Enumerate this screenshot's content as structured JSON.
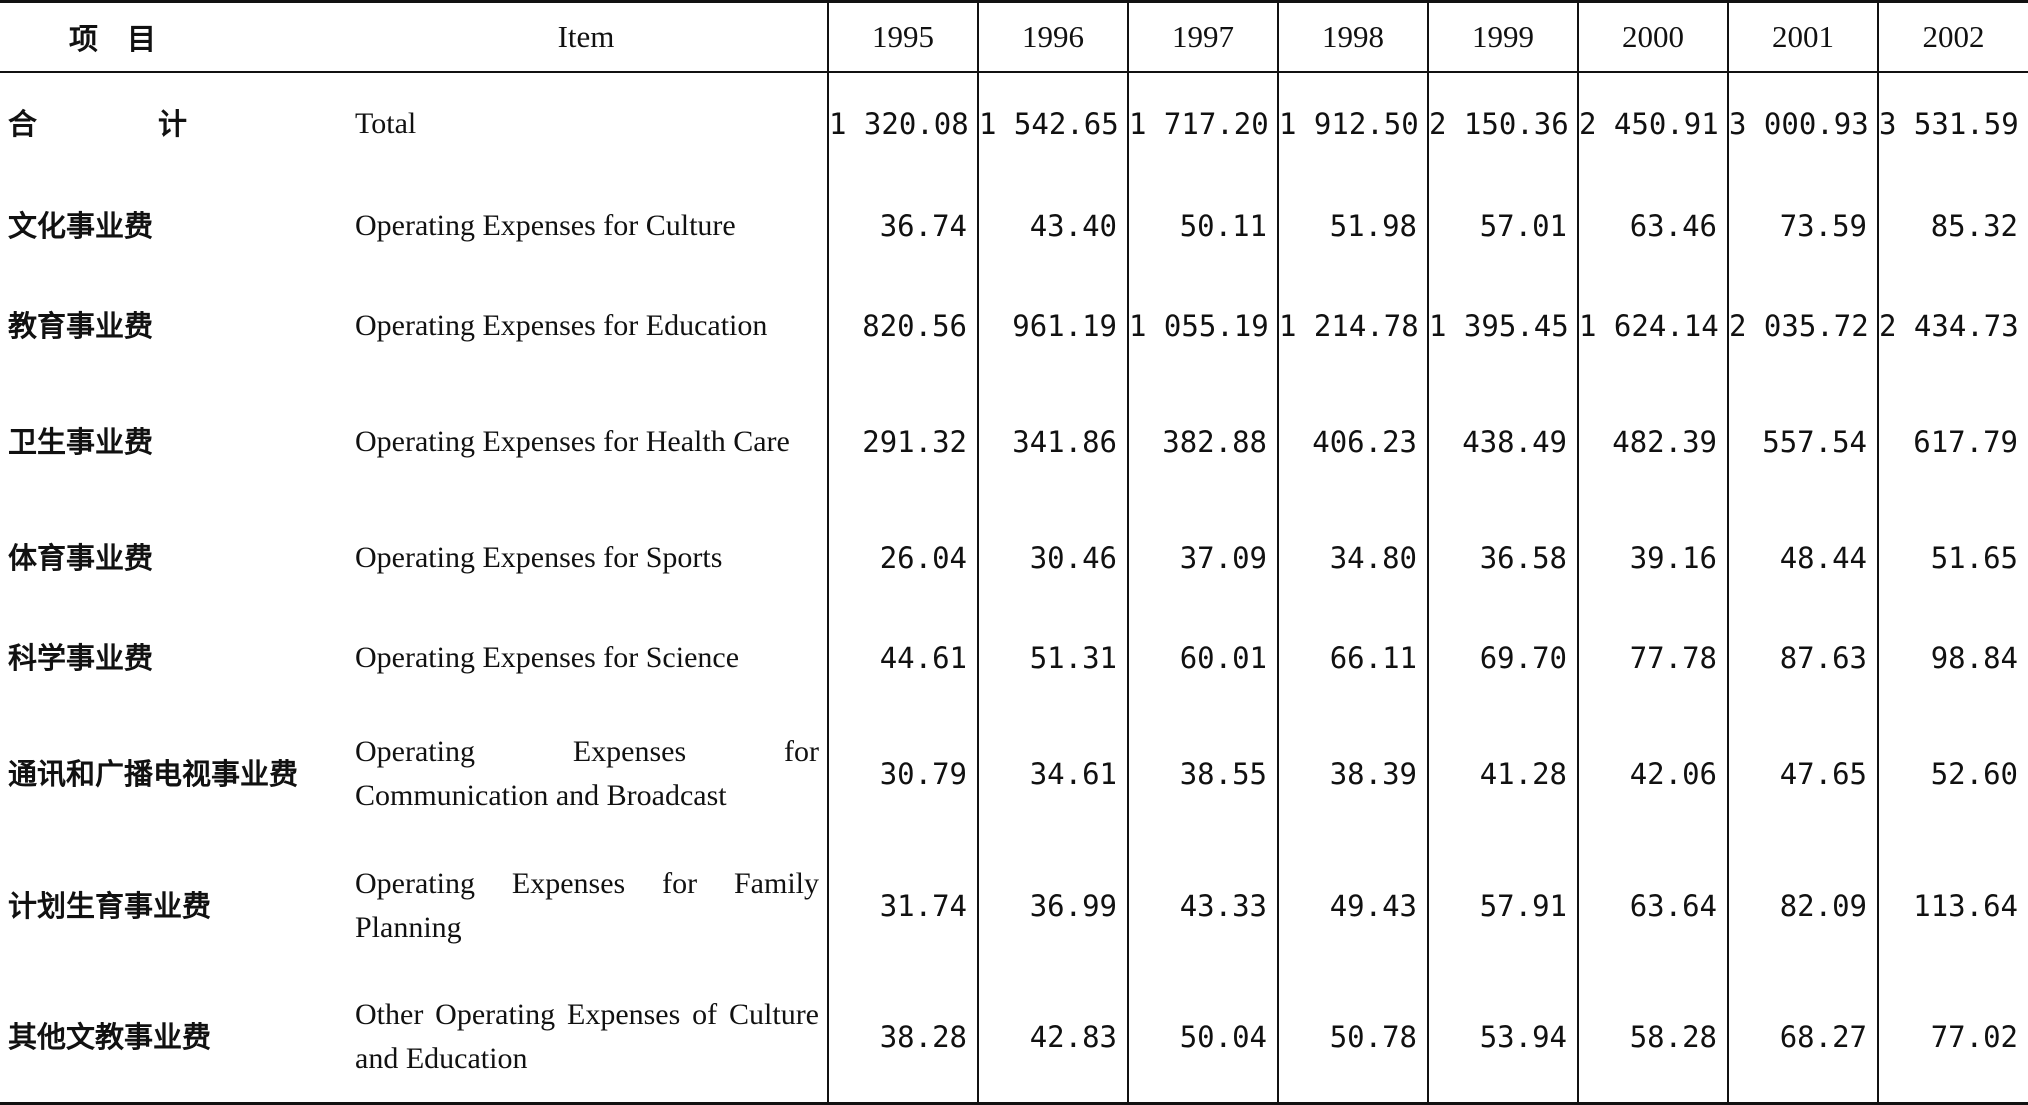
{
  "header": {
    "item_zh": "项　目",
    "item_en": "Item",
    "years": [
      "1995",
      "1996",
      "1997",
      "1998",
      "1999",
      "2000",
      "2001",
      "2002"
    ]
  },
  "rows": [
    {
      "zh": "合　计",
      "en": "Total",
      "values": [
        "1 320.08",
        "1 542.65",
        "1 717.20",
        "1 912.50",
        "2 150.36",
        "2 450.91",
        "3 000.93",
        "3 531.59"
      ]
    },
    {
      "zh": "文化事业费",
      "en": "Operating Expenses for Culture",
      "values": [
        "36.74",
        "43.40",
        "50.11",
        "51.98",
        "57.01",
        "63.46",
        "73.59",
        "85.32"
      ]
    },
    {
      "zh": "教育事业费",
      "en": "Operating Expenses for Education",
      "values": [
        "820.56",
        "961.19",
        "1 055.19",
        "1 214.78",
        "1 395.45",
        "1 624.14",
        "2 035.72",
        "2 434.73"
      ]
    },
    {
      "zh": "卫生事业费",
      "en": "Operating Expenses for Health Care",
      "values": [
        "291.32",
        "341.86",
        "382.88",
        "406.23",
        "438.49",
        "482.39",
        "557.54",
        "617.79"
      ]
    },
    {
      "zh": "体育事业费",
      "en": "Operating Expenses for Sports",
      "values": [
        "26.04",
        "30.46",
        "37.09",
        "34.80",
        "36.58",
        "39.16",
        "48.44",
        "51.65"
      ]
    },
    {
      "zh": "科学事业费",
      "en": "Operating Expenses for Science",
      "values": [
        "44.61",
        "51.31",
        "60.01",
        "66.11",
        "69.70",
        "77.78",
        "87.63",
        "98.84"
      ]
    },
    {
      "zh": "通讯和广播电视事业费",
      "en": "Operating Expenses for Communication and Broadcast",
      "values": [
        "30.79",
        "34.61",
        "38.55",
        "38.39",
        "41.28",
        "42.06",
        "47.65",
        "52.60"
      ]
    },
    {
      "zh": "计划生育事业费",
      "en": "Operating Expenses for Family Planning",
      "values": [
        "31.74",
        "36.99",
        "43.33",
        "49.43",
        "57.91",
        "63.64",
        "82.09",
        "113.64"
      ]
    },
    {
      "zh": "其他文教事业费",
      "en": "Other Operating Expenses of Culture and Education",
      "values": [
        "38.28",
        "42.83",
        "50.04",
        "50.78",
        "53.94",
        "58.28",
        "68.27",
        "77.02"
      ]
    }
  ]
}
